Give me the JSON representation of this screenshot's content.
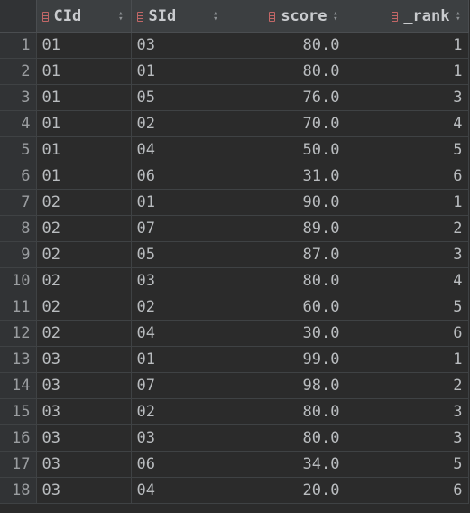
{
  "columns": [
    {
      "label": "CId"
    },
    {
      "label": "SId"
    },
    {
      "label": "score"
    },
    {
      "label": "_rank"
    }
  ],
  "rows": [
    {
      "n": "1",
      "cid": "01",
      "sid": "03",
      "score": "80.0",
      "rank": "1"
    },
    {
      "n": "2",
      "cid": "01",
      "sid": "01",
      "score": "80.0",
      "rank": "1"
    },
    {
      "n": "3",
      "cid": "01",
      "sid": "05",
      "score": "76.0",
      "rank": "3"
    },
    {
      "n": "4",
      "cid": "01",
      "sid": "02",
      "score": "70.0",
      "rank": "4"
    },
    {
      "n": "5",
      "cid": "01",
      "sid": "04",
      "score": "50.0",
      "rank": "5"
    },
    {
      "n": "6",
      "cid": "01",
      "sid": "06",
      "score": "31.0",
      "rank": "6"
    },
    {
      "n": "7",
      "cid": "02",
      "sid": "01",
      "score": "90.0",
      "rank": "1"
    },
    {
      "n": "8",
      "cid": "02",
      "sid": "07",
      "score": "89.0",
      "rank": "2"
    },
    {
      "n": "9",
      "cid": "02",
      "sid": "05",
      "score": "87.0",
      "rank": "3"
    },
    {
      "n": "10",
      "cid": "02",
      "sid": "03",
      "score": "80.0",
      "rank": "4"
    },
    {
      "n": "11",
      "cid": "02",
      "sid": "02",
      "score": "60.0",
      "rank": "5"
    },
    {
      "n": "12",
      "cid": "02",
      "sid": "04",
      "score": "30.0",
      "rank": "6"
    },
    {
      "n": "13",
      "cid": "03",
      "sid": "01",
      "score": "99.0",
      "rank": "1"
    },
    {
      "n": "14",
      "cid": "03",
      "sid": "07",
      "score": "98.0",
      "rank": "2"
    },
    {
      "n": "15",
      "cid": "03",
      "sid": "02",
      "score": "80.0",
      "rank": "3"
    },
    {
      "n": "16",
      "cid": "03",
      "sid": "03",
      "score": "80.0",
      "rank": "3"
    },
    {
      "n": "17",
      "cid": "03",
      "sid": "06",
      "score": "34.0",
      "rank": "5"
    },
    {
      "n": "18",
      "cid": "03",
      "sid": "04",
      "score": "20.0",
      "rank": "6"
    }
  ],
  "icons": {
    "column": "table-column-icon",
    "sort": "sort-arrows-icon"
  },
  "colors": {
    "background": "#2b2b2b",
    "header": "#3c3f41",
    "column_icon": "#c26767"
  }
}
